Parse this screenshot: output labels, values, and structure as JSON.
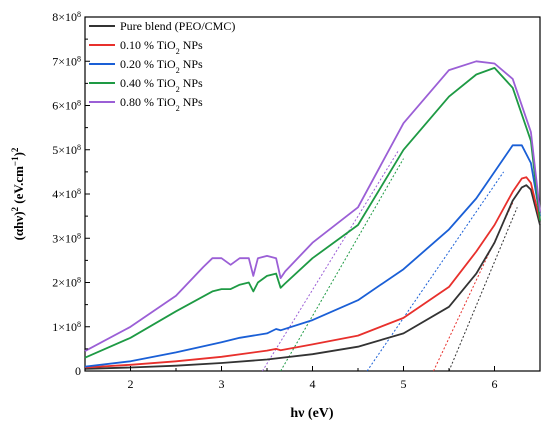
{
  "chart_data": {
    "type": "line",
    "xlabel": "hν (eV)",
    "ylabel": {
      "main": "(αhν)",
      "sup1": "2",
      "mid": " (eV.cm",
      "sup2": "−1",
      "end": ")",
      "sup3": "2"
    },
    "xlim": [
      1.5,
      6.5
    ],
    "ylim": [
      0,
      800000000.0
    ],
    "x_ticks": [
      2,
      3,
      4,
      5,
      6
    ],
    "y_ticks": [
      {
        "value": 0,
        "mant": "0",
        "exp": ""
      },
      {
        "value": 100000000.0,
        "mant": "1×10",
        "exp": "8"
      },
      {
        "value": 200000000.0,
        "mant": "2×10",
        "exp": "8"
      },
      {
        "value": 300000000.0,
        "mant": "3×10",
        "exp": "8"
      },
      {
        "value": 400000000.0,
        "mant": "4×10",
        "exp": "8"
      },
      {
        "value": 500000000.0,
        "mant": "5×10",
        "exp": "8"
      },
      {
        "value": 600000000.0,
        "mant": "6×10",
        "exp": "8"
      },
      {
        "value": 700000000.0,
        "mant": "7×10",
        "exp": "8"
      },
      {
        "value": 800000000.0,
        "mant": "8×10",
        "exp": "8"
      }
    ],
    "legend_position": "top-left",
    "series": [
      {
        "name": {
          "pre": "Pure blend (PEO/CMC)",
          "sub": "",
          "post": ""
        },
        "color": "#333333",
        "x": [
          1.5,
          2.0,
          2.5,
          3.0,
          3.5,
          4.0,
          4.5,
          5.0,
          5.5,
          5.8,
          6.0,
          6.2,
          6.3,
          6.35,
          6.4,
          6.5
        ],
        "y": [
          5000000.0,
          8000000.0,
          12000000.0,
          18000000.0,
          26000000.0,
          38000000.0,
          55000000.0,
          85000000.0,
          145000000.0,
          220000000.0,
          290000000.0,
          385000000.0,
          415000000.0,
          420000000.0,
          410000000.0,
          330000000.0
        ]
      },
      {
        "name": {
          "pre": "0.10 % TiO",
          "sub": "2",
          "post": " NPs"
        },
        "color": "#e8302c",
        "x": [
          1.5,
          2.0,
          2.5,
          3.0,
          3.5,
          3.6,
          3.65,
          4.0,
          4.5,
          5.0,
          5.5,
          5.8,
          6.0,
          6.2,
          6.3,
          6.35,
          6.4,
          6.5
        ],
        "y": [
          8000000.0,
          14000000.0,
          22000000.0,
          32000000.0,
          46000000.0,
          50000000.0,
          47000000.0,
          60000000.0,
          80000000.0,
          120000000.0,
          190000000.0,
          270000000.0,
          330000000.0,
          405000000.0,
          435000000.0,
          438000000.0,
          425000000.0,
          340000000.0
        ]
      },
      {
        "name": {
          "pre": "0.20 % TiO",
          "sub": "2",
          "post": " NPs"
        },
        "color": "#1a5fd6",
        "x": [
          1.5,
          2.0,
          2.5,
          3.0,
          3.2,
          3.5,
          3.6,
          3.65,
          4.0,
          4.5,
          5.0,
          5.5,
          5.8,
          6.0,
          6.2,
          6.3,
          6.4,
          6.5
        ],
        "y": [
          10000000.0,
          22000000.0,
          42000000.0,
          65000000.0,
          75000000.0,
          85000000.0,
          95000000.0,
          92000000.0,
          115000000.0,
          160000000.0,
          230000000.0,
          320000000.0,
          390000000.0,
          450000000.0,
          510000000.0,
          510000000.0,
          470000000.0,
          350000000.0
        ]
      },
      {
        "name": {
          "pre": "0.40 % TiO",
          "sub": "2",
          "post": " NPs"
        },
        "color": "#1e9a44",
        "x": [
          1.5,
          2.0,
          2.5,
          2.9,
          3.0,
          3.1,
          3.2,
          3.3,
          3.35,
          3.4,
          3.5,
          3.6,
          3.65,
          3.7,
          4.0,
          4.5,
          5.0,
          5.5,
          5.8,
          6.0,
          6.2,
          6.4,
          6.5
        ],
        "y": [
          30000000.0,
          75000000.0,
          135000000.0,
          180000000.0,
          185000000.0,
          185000000.0,
          195000000.0,
          200000000.0,
          180000000.0,
          200000000.0,
          215000000.0,
          220000000.0,
          188000000.0,
          198000000.0,
          255000000.0,
          330000000.0,
          500000000.0,
          620000000.0,
          670000000.0,
          685000000.0,
          640000000.0,
          520000000.0,
          340000000.0
        ]
      },
      {
        "name": {
          "pre": "0.80 % TiO",
          "sub": "2",
          "post": " NPs"
        },
        "color": "#9b5fd6",
        "x": [
          1.5,
          2.0,
          2.5,
          2.8,
          2.9,
          3.0,
          3.1,
          3.2,
          3.3,
          3.35,
          3.4,
          3.5,
          3.6,
          3.65,
          3.7,
          4.0,
          4.5,
          5.0,
          5.5,
          5.8,
          6.0,
          6.2,
          6.4,
          6.5
        ],
        "y": [
          45000000.0,
          100000000.0,
          170000000.0,
          235000000.0,
          255000000.0,
          255000000.0,
          240000000.0,
          255000000.0,
          255000000.0,
          215000000.0,
          255000000.0,
          260000000.0,
          255000000.0,
          210000000.0,
          225000000.0,
          290000000.0,
          370000000.0,
          560000000.0,
          680000000.0,
          700000000.0,
          695000000.0,
          660000000.0,
          540000000.0,
          360000000.0
        ]
      }
    ],
    "fit_lines": [
      {
        "color": "#333333",
        "x": [
          5.5,
          6.25
        ],
        "y": [
          0,
          370000000.0
        ]
      },
      {
        "color": "#e8302c",
        "x": [
          5.33,
          6.2
        ],
        "y": [
          0,
          380000000.0
        ]
      },
      {
        "color": "#1a5fd6",
        "x": [
          4.6,
          6.1
        ],
        "y": [
          0,
          450000000.0
        ]
      },
      {
        "color": "#1e9a44",
        "x": [
          3.65,
          5.0
        ],
        "y": [
          0,
          480000000.0
        ]
      },
      {
        "color": "#9b5fd6",
        "x": [
          3.45,
          4.95
        ],
        "y": [
          0,
          500000000.0
        ]
      }
    ]
  }
}
